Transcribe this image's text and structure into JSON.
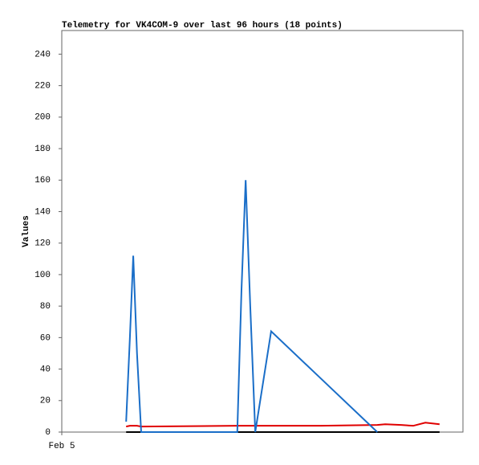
{
  "chart_data": {
    "type": "line",
    "title": "Telemetry for VK4COM-9 over last 96 hours (18 points)",
    "y_label": "Values",
    "x": [
      15.4,
      16.3,
      17.1,
      18.0,
      19.0,
      42.0,
      43.0,
      44.0,
      45.1,
      46.3,
      50.1,
      62.0,
      75.5,
      77.4,
      81.2,
      84.1,
      87.0,
      90.4
    ],
    "xlim": [
      0,
      96
    ],
    "xticks": [
      {
        "value": 0,
        "label": "Feb 5"
      }
    ],
    "ylim": [
      0,
      255
    ],
    "yticks": [
      0,
      20,
      40,
      60,
      80,
      100,
      120,
      140,
      160,
      180,
      200,
      220,
      240
    ],
    "series": [
      {
        "color": "#000000",
        "values": [
          0,
          0,
          0,
          0,
          0,
          0,
          0,
          0,
          0,
          0,
          0,
          0,
          0,
          0,
          0,
          0,
          0,
          0
        ]
      },
      {
        "color": "#e00000",
        "values": [
          3.5,
          4,
          4,
          4,
          3.5,
          4,
          4,
          4,
          4,
          4,
          4,
          4,
          4.5,
          5,
          4.5,
          4,
          6,
          5
        ]
      },
      {
        "color": "#1a6ec8",
        "values": [
          6.6,
          60,
          112,
          50,
          0,
          0,
          90,
          160,
          80,
          0,
          64,
          34,
          0,
          null,
          null,
          null,
          null,
          null
        ]
      }
    ]
  }
}
